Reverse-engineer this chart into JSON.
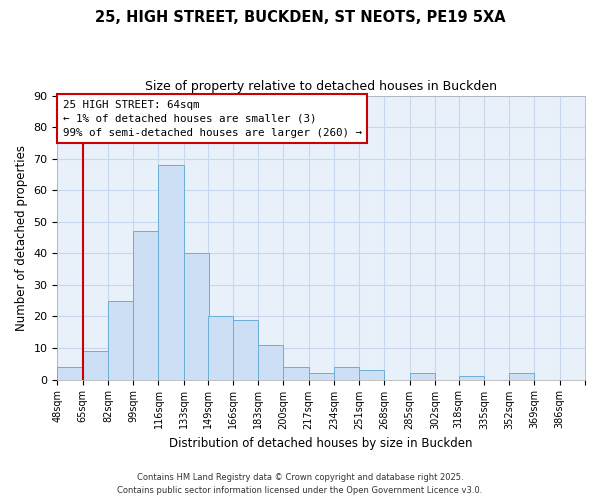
{
  "title_line1": "25, HIGH STREET, BUCKDEN, ST NEOTS, PE19 5XA",
  "title_line2": "Size of property relative to detached houses in Buckden",
  "xlabel": "Distribution of detached houses by size in Buckden",
  "ylabel": "Number of detached properties",
  "bar_heights": [
    4,
    9,
    25,
    47,
    68,
    40,
    20,
    19,
    11,
    4,
    2,
    4,
    3,
    0,
    2,
    0,
    1,
    0,
    2
  ],
  "bin_labels": [
    "48sqm",
    "65sqm",
    "82sqm",
    "99sqm",
    "116sqm",
    "133sqm",
    "149sqm",
    "166sqm",
    "183sqm",
    "200sqm",
    "217sqm",
    "234sqm",
    "251sqm",
    "268sqm",
    "285sqm",
    "302sqm",
    "318sqm",
    "335sqm",
    "352sqm",
    "369sqm",
    "386sqm"
  ],
  "bin_edges": [
    48,
    65,
    82,
    99,
    116,
    133,
    149,
    166,
    183,
    200,
    217,
    234,
    251,
    268,
    285,
    302,
    318,
    335,
    352,
    369,
    386
  ],
  "bar_color": "#ccdff5",
  "bar_edge_color": "#6baed6",
  "property_line_x": 65,
  "ylim": [
    0,
    90
  ],
  "yticks": [
    0,
    10,
    20,
    30,
    40,
    50,
    60,
    70,
    80,
    90
  ],
  "annotation_title": "25 HIGH STREET: 64sqm",
  "annotation_line1": "← 1% of detached houses are smaller (3)",
  "annotation_line2": "99% of semi-detached houses are larger (260) →",
  "red_line_color": "#cc0000",
  "annotation_box_color": "#ffffff",
  "annotation_box_edge": "#cc0000",
  "grid_color": "#c8d8ec",
  "background_color": "#e8f0fa",
  "fig_background": "#ffffff",
  "footer_line1": "Contains HM Land Registry data © Crown copyright and database right 2025.",
  "footer_line2": "Contains public sector information licensed under the Open Government Licence v3.0."
}
